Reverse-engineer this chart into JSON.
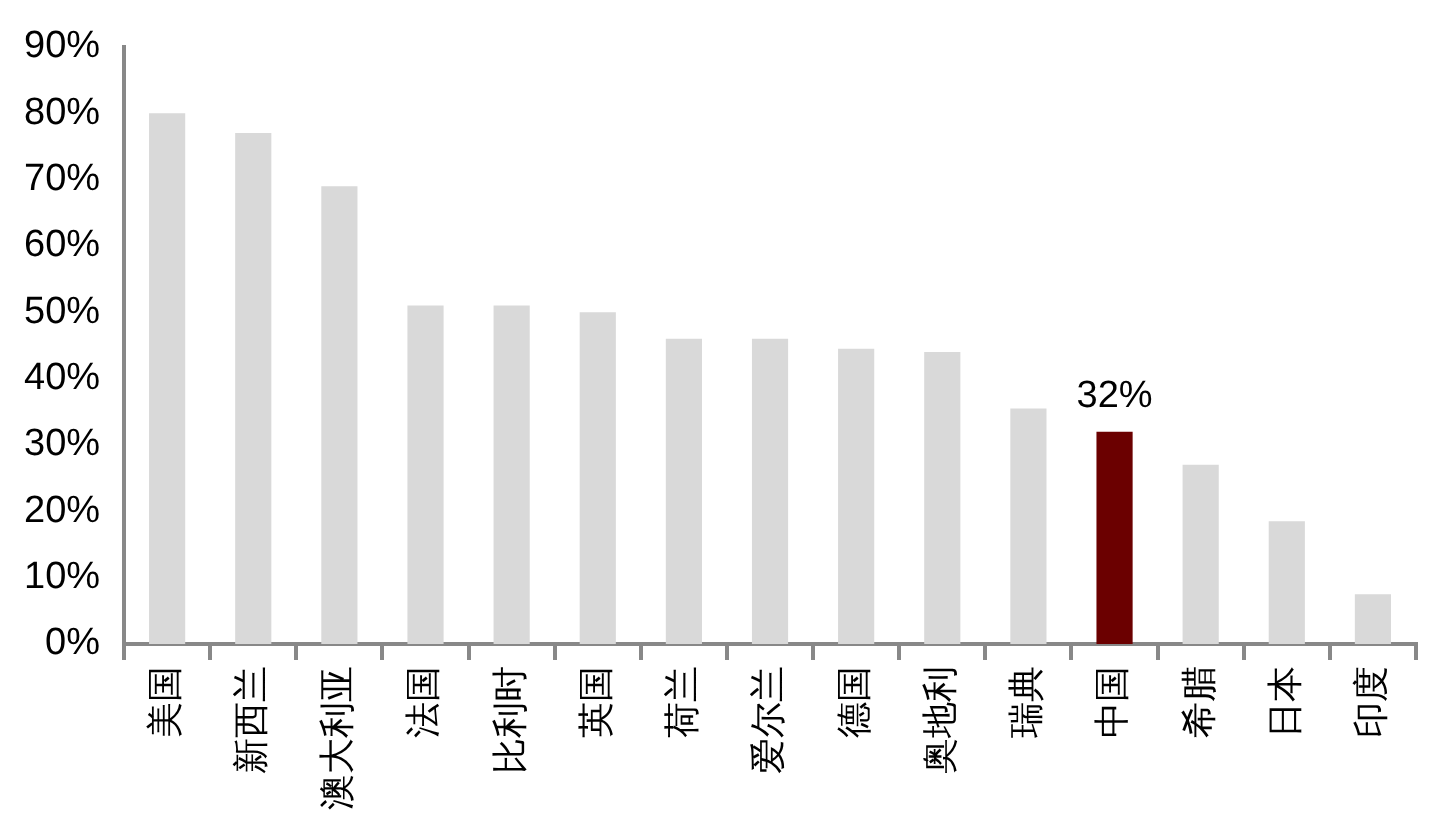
{
  "chart_data": {
    "type": "bar",
    "categories": [
      "美国",
      "新西兰",
      "澳大利亚",
      "法国",
      "比利时",
      "英国",
      "荷兰",
      "爱尔兰",
      "德国",
      "奥地利",
      "瑞典",
      "中国",
      "希腊",
      "日本",
      "印度"
    ],
    "values": [
      80,
      77,
      69,
      51,
      51,
      50,
      46,
      46,
      44.5,
      44,
      35.5,
      32,
      27,
      18.5,
      7.5
    ],
    "colors": [
      "#d9d9d9",
      "#d9d9d9",
      "#d9d9d9",
      "#d9d9d9",
      "#d9d9d9",
      "#d9d9d9",
      "#d9d9d9",
      "#d9d9d9",
      "#d9d9d9",
      "#d9d9d9",
      "#d9d9d9",
      "#6b0000",
      "#d9d9d9",
      "#d9d9d9",
      "#d9d9d9"
    ],
    "value_labels": [
      null,
      null,
      null,
      null,
      null,
      null,
      null,
      null,
      null,
      null,
      null,
      "32%",
      null,
      null,
      null
    ],
    "ylim": [
      0,
      90
    ],
    "yticks": [
      {
        "value": 0,
        "label": "0%"
      },
      {
        "value": 10,
        "label": "10%"
      },
      {
        "value": 20,
        "label": "20%"
      },
      {
        "value": 30,
        "label": "30%"
      },
      {
        "value": 40,
        "label": "40%"
      },
      {
        "value": 50,
        "label": "50%"
      },
      {
        "value": 60,
        "label": "60%"
      },
      {
        "value": 70,
        "label": "70%"
      },
      {
        "value": 80,
        "label": "80%"
      },
      {
        "value": 90,
        "label": "90%"
      }
    ],
    "grid": false,
    "legend": false
  }
}
